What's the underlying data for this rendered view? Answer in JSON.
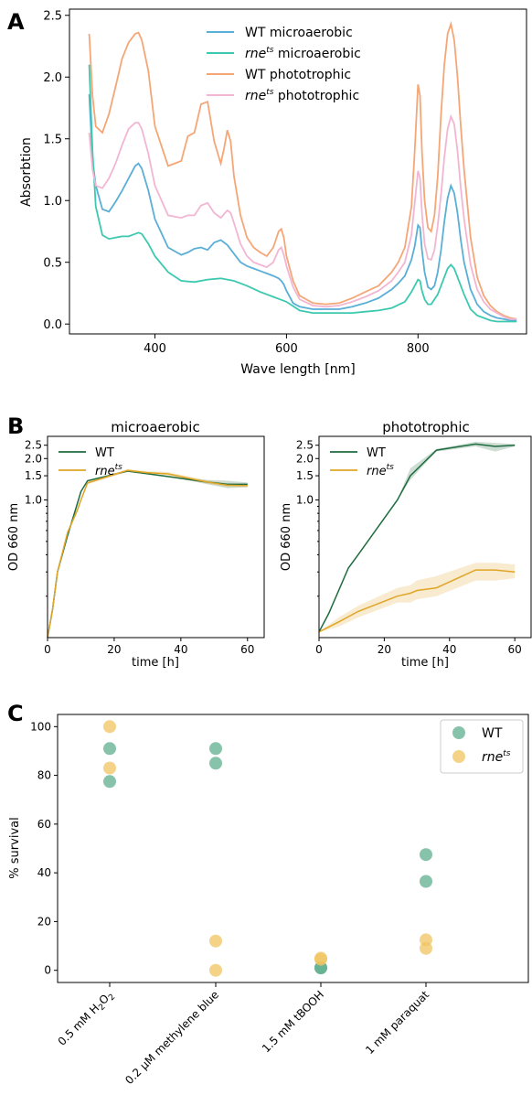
{
  "panel_letters": {
    "a": "A",
    "b": "B",
    "c": "C"
  },
  "chart_data": [
    {
      "panel": "A",
      "type": "line",
      "xlabel": "Wave length [nm]",
      "ylabel": "Absorbtion",
      "xlim": [
        270,
        965
      ],
      "ylim": [
        -0.08,
        2.55
      ],
      "xticks": [
        400,
        600,
        800
      ],
      "yticks": [
        0.0,
        0.5,
        1.0,
        1.5,
        2.0,
        2.5
      ],
      "ytick_labels": [
        "0.0",
        "0.5",
        "1.0",
        "1.5",
        "2.0",
        "2.5"
      ],
      "legend_position": "top-center",
      "series": [
        {
          "name": "WT microaerobic",
          "name_main": "WT microaerobic",
          "name_sup": "",
          "name_rest": "",
          "color": "#5AAFD6",
          "x": [
            300,
            305,
            310,
            320,
            330,
            340,
            350,
            360,
            370,
            375,
            380,
            390,
            400,
            420,
            440,
            450,
            460,
            470,
            480,
            490,
            500,
            510,
            520,
            530,
            540,
            550,
            560,
            570,
            580,
            588,
            592,
            596,
            600,
            610,
            620,
            640,
            660,
            680,
            700,
            720,
            740,
            760,
            770,
            780,
            790,
            795,
            800,
            803,
            806,
            810,
            815,
            820,
            825,
            830,
            835,
            840,
            845,
            850,
            855,
            860,
            865,
            870,
            880,
            890,
            900,
            910,
            920,
            930,
            940,
            950
          ],
          "y": [
            1.86,
            1.33,
            1.12,
            0.93,
            0.91,
            0.99,
            1.08,
            1.18,
            1.28,
            1.3,
            1.26,
            1.08,
            0.85,
            0.62,
            0.56,
            0.58,
            0.61,
            0.62,
            0.6,
            0.66,
            0.68,
            0.64,
            0.57,
            0.5,
            0.47,
            0.45,
            0.43,
            0.41,
            0.39,
            0.37,
            0.35,
            0.32,
            0.27,
            0.17,
            0.14,
            0.12,
            0.12,
            0.12,
            0.14,
            0.17,
            0.21,
            0.28,
            0.33,
            0.39,
            0.52,
            0.63,
            0.8,
            0.78,
            0.6,
            0.42,
            0.3,
            0.28,
            0.31,
            0.42,
            0.6,
            0.83,
            1.02,
            1.12,
            1.06,
            0.9,
            0.68,
            0.5,
            0.28,
            0.16,
            0.1,
            0.07,
            0.05,
            0.04,
            0.03,
            0.03
          ]
        },
        {
          "name": "rne microaerobic",
          "name_main": "rne",
          "name_sup": "ts",
          "name_rest": " microaerobic",
          "color": "#3CC9B0",
          "x": [
            300,
            305,
            310,
            320,
            330,
            340,
            350,
            360,
            370,
            375,
            380,
            390,
            400,
            420,
            440,
            460,
            480,
            500,
            520,
            540,
            560,
            580,
            590,
            600,
            620,
            640,
            660,
            680,
            700,
            720,
            740,
            760,
            780,
            790,
            795,
            800,
            803,
            806,
            810,
            815,
            820,
            830,
            840,
            845,
            850,
            855,
            860,
            870,
            880,
            890,
            900,
            910,
            920,
            930,
            940,
            950
          ],
          "y": [
            2.1,
            1.4,
            0.95,
            0.72,
            0.69,
            0.7,
            0.71,
            0.71,
            0.73,
            0.74,
            0.73,
            0.65,
            0.55,
            0.42,
            0.35,
            0.34,
            0.36,
            0.37,
            0.35,
            0.31,
            0.26,
            0.22,
            0.2,
            0.18,
            0.11,
            0.09,
            0.09,
            0.09,
            0.09,
            0.1,
            0.11,
            0.13,
            0.18,
            0.26,
            0.31,
            0.36,
            0.35,
            0.27,
            0.2,
            0.16,
            0.16,
            0.24,
            0.38,
            0.45,
            0.48,
            0.45,
            0.38,
            0.24,
            0.12,
            0.07,
            0.05,
            0.03,
            0.02,
            0.02,
            0.02,
            0.02
          ]
        },
        {
          "name": "WT phototrophic",
          "name_main": "WT phototrophic",
          "name_sup": "",
          "name_rest": "",
          "color": "#F5A677",
          "x": [
            300,
            305,
            310,
            320,
            330,
            340,
            350,
            360,
            370,
            375,
            380,
            390,
            400,
            420,
            440,
            450,
            460,
            470,
            480,
            490,
            500,
            505,
            510,
            515,
            520,
            530,
            540,
            550,
            560,
            570,
            580,
            588,
            592,
            596,
            600,
            610,
            620,
            640,
            660,
            680,
            700,
            720,
            740,
            760,
            770,
            780,
            790,
            795,
            800,
            803,
            806,
            810,
            815,
            820,
            825,
            830,
            835,
            840,
            845,
            850,
            855,
            860,
            865,
            870,
            880,
            890,
            900,
            910,
            920,
            930,
            940,
            950
          ],
          "y": [
            2.35,
            1.85,
            1.6,
            1.55,
            1.7,
            1.92,
            2.15,
            2.28,
            2.35,
            2.36,
            2.3,
            2.05,
            1.6,
            1.28,
            1.32,
            1.52,
            1.55,
            1.78,
            1.8,
            1.48,
            1.3,
            1.42,
            1.57,
            1.48,
            1.2,
            0.88,
            0.7,
            0.62,
            0.58,
            0.55,
            0.62,
            0.75,
            0.77,
            0.7,
            0.55,
            0.35,
            0.23,
            0.17,
            0.16,
            0.17,
            0.21,
            0.26,
            0.31,
            0.42,
            0.5,
            0.62,
            0.95,
            1.4,
            1.94,
            1.85,
            1.4,
            1.0,
            0.78,
            0.75,
            0.88,
            1.2,
            1.7,
            2.1,
            2.35,
            2.43,
            2.3,
            2.0,
            1.6,
            1.25,
            0.7,
            0.38,
            0.23,
            0.15,
            0.1,
            0.07,
            0.05,
            0.04
          ]
        },
        {
          "name": "rne phototrophic",
          "name_main": "rne",
          "name_sup": "ts",
          "name_rest": " phototrophic",
          "color": "#F2B6D2",
          "x": [
            300,
            305,
            310,
            320,
            330,
            340,
            350,
            360,
            370,
            375,
            380,
            390,
            400,
            420,
            440,
            450,
            460,
            470,
            480,
            490,
            500,
            510,
            515,
            520,
            530,
            540,
            550,
            560,
            570,
            580,
            588,
            592,
            596,
            600,
            610,
            620,
            640,
            660,
            680,
            700,
            720,
            740,
            760,
            770,
            780,
            790,
            795,
            800,
            803,
            806,
            810,
            815,
            820,
            825,
            830,
            835,
            840,
            845,
            850,
            855,
            860,
            865,
            870,
            880,
            890,
            900,
            910,
            920,
            930,
            940,
            950
          ],
          "y": [
            1.55,
            1.25,
            1.12,
            1.1,
            1.18,
            1.3,
            1.45,
            1.58,
            1.63,
            1.63,
            1.58,
            1.38,
            1.12,
            0.88,
            0.86,
            0.88,
            0.88,
            0.96,
            0.98,
            0.9,
            0.86,
            0.92,
            0.9,
            0.82,
            0.65,
            0.55,
            0.5,
            0.48,
            0.46,
            0.5,
            0.6,
            0.62,
            0.56,
            0.47,
            0.3,
            0.2,
            0.15,
            0.14,
            0.15,
            0.18,
            0.22,
            0.27,
            0.35,
            0.42,
            0.5,
            0.72,
            0.98,
            1.24,
            1.18,
            0.9,
            0.65,
            0.53,
            0.52,
            0.6,
            0.8,
            1.05,
            1.35,
            1.58,
            1.68,
            1.62,
            1.4,
            1.1,
            0.85,
            0.48,
            0.28,
            0.18,
            0.12,
            0.09,
            0.06,
            0.04,
            0.04
          ]
        }
      ]
    },
    {
      "panel": "B-left",
      "type": "line",
      "title": "microaerobic",
      "xlabel": "time [h]",
      "ylabel": "OD 660 nm",
      "y_scale": "log",
      "xlim": [
        0,
        65
      ],
      "ylim": [
        0.1,
        2.9
      ],
      "xticks": [
        0,
        20,
        40,
        60
      ],
      "yticks": [
        1.0,
        1.5,
        2.0,
        2.5
      ],
      "ytick_labels": [
        "1.0",
        "1.5",
        "2.0",
        "2.5"
      ],
      "legend_position": "top-left",
      "series": [
        {
          "name": "WT",
          "name_main": "WT",
          "name_sup": "",
          "color": "#1E6B3F",
          "x": [
            0,
            1.5,
            3,
            6,
            9,
            10,
            12,
            24,
            30,
            36,
            48,
            54,
            60
          ],
          "y": [
            0.1,
            0.16,
            0.3,
            0.55,
            0.95,
            1.15,
            1.38,
            1.62,
            1.55,
            1.48,
            1.35,
            1.3,
            1.3
          ],
          "band_low": [
            0.1,
            0.16,
            0.3,
            0.55,
            0.95,
            1.15,
            1.38,
            1.62,
            1.55,
            1.48,
            1.3,
            1.22,
            1.24
          ],
          "band_high": [
            0.1,
            0.16,
            0.3,
            0.55,
            0.95,
            1.15,
            1.38,
            1.62,
            1.55,
            1.48,
            1.4,
            1.38,
            1.34
          ]
        },
        {
          "name": "rne",
          "name_main": "rne",
          "name_sup": "ts",
          "color": "#E0A526",
          "x": [
            0,
            1.5,
            3,
            6,
            9,
            10,
            12,
            24,
            30,
            36,
            48,
            54,
            60
          ],
          "y": [
            0.1,
            0.16,
            0.3,
            0.58,
            0.85,
            1.0,
            1.33,
            1.64,
            1.58,
            1.55,
            1.35,
            1.28,
            1.27
          ],
          "band_low": [
            0.1,
            0.16,
            0.3,
            0.56,
            0.82,
            0.97,
            1.3,
            1.6,
            1.54,
            1.5,
            1.31,
            1.24,
            1.24
          ],
          "band_high": [
            0.1,
            0.16,
            0.3,
            0.6,
            0.88,
            1.03,
            1.36,
            1.68,
            1.62,
            1.6,
            1.39,
            1.32,
            1.3
          ]
        }
      ]
    },
    {
      "panel": "B-right",
      "type": "line",
      "title": "phototrophic",
      "xlabel": "time [h]",
      "ylabel": "OD 660 nm",
      "y_scale": "log",
      "xlim": [
        0,
        65
      ],
      "ylim": [
        0.1,
        2.9
      ],
      "xticks": [
        0,
        20,
        40,
        60
      ],
      "yticks": [
        1.0,
        1.5,
        2.0,
        2.5
      ],
      "ytick_labels": [
        "1.0",
        "1.5",
        "2.0",
        "2.5"
      ],
      "legend_position": "top-left",
      "series": [
        {
          "name": "WT",
          "name_main": "WT",
          "name_sup": "",
          "color": "#1E6B3F",
          "x": [
            0,
            3,
            9,
            12,
            24,
            28,
            36,
            48,
            54,
            60
          ],
          "y": [
            0.11,
            0.15,
            0.32,
            0.4,
            1.0,
            1.5,
            2.3,
            2.55,
            2.45,
            2.5
          ],
          "band_low": [
            0.11,
            0.15,
            0.32,
            0.4,
            1.0,
            1.4,
            2.25,
            2.45,
            2.25,
            2.45
          ],
          "band_high": [
            0.11,
            0.15,
            0.32,
            0.4,
            1.0,
            1.7,
            2.35,
            2.65,
            2.6,
            2.55
          ]
        },
        {
          "name": "rne",
          "name_main": "rne",
          "name_sup": "ts",
          "color": "#E0A526",
          "x": [
            0,
            6,
            12,
            24,
            28,
            30,
            36,
            48,
            54,
            60
          ],
          "y": [
            0.11,
            0.13,
            0.155,
            0.2,
            0.21,
            0.22,
            0.23,
            0.31,
            0.31,
            0.3
          ],
          "band_low": [
            0.11,
            0.12,
            0.14,
            0.18,
            0.18,
            0.19,
            0.2,
            0.26,
            0.26,
            0.27
          ],
          "band_high": [
            0.11,
            0.14,
            0.17,
            0.23,
            0.24,
            0.26,
            0.28,
            0.35,
            0.35,
            0.34
          ]
        }
      ]
    },
    {
      "panel": "C",
      "type": "scatter",
      "ylabel": "% survival",
      "ylim": [
        -5,
        105
      ],
      "yticks": [
        0,
        20,
        40,
        60,
        80,
        100
      ],
      "categories": [
        {
          "main": "0.5 mM H",
          "sub1": "2",
          "mid": "O",
          "sub2": "2"
        },
        {
          "main": "0.2 µM methylene blue",
          "sub1": "",
          "mid": "",
          "sub2": ""
        },
        {
          "main": "1.5 mM tBOOH",
          "sub1": "",
          "mid": "",
          "sub2": ""
        },
        {
          "main": "1 mM paraquat",
          "sub1": "",
          "mid": "",
          "sub2": ""
        }
      ],
      "legend_position": "top-right",
      "series": [
        {
          "name": "WT",
          "name_main": "WT",
          "name_sup": "",
          "color": "#5FAD8E",
          "values": [
            [
              91,
              77.5
            ],
            [
              91,
              85
            ],
            [
              1,
              1
            ],
            [
              47.5,
              36.5
            ]
          ]
        },
        {
          "name": "rne",
          "name_main": "rne",
          "name_sup": "ts",
          "color": "#F0C460",
          "values": [
            [
              100,
              83
            ],
            [
              12,
              0
            ],
            [
              5,
              4.5
            ],
            [
              12.5,
              9
            ]
          ]
        }
      ]
    }
  ]
}
